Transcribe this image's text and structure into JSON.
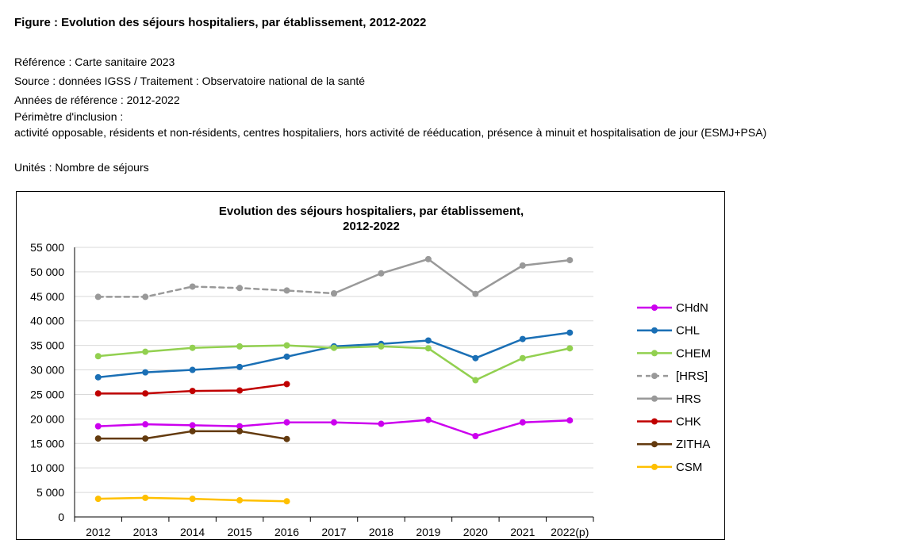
{
  "figure": {
    "title": "Figure : Evolution des séjours hospitaliers, par établissement, 2012-2022",
    "reference": "Référence : Carte sanitaire 2023",
    "source": "Source : données IGSS / Traitement : Observatoire national de la santé",
    "years": "Années de référence : 2012-2022",
    "scope_label": "Périmètre d'inclusion :",
    "scope": "activité opposable, résidents et non-résidents, centres hospitaliers, hors activité de rééducation, présence à minuit et hospitalisation de jour (ESMJ+PSA)",
    "units": "Unités : Nombre de séjours"
  },
  "chart_data": {
    "type": "line",
    "title_lines": [
      "Evolution des séjours hospitaliers, par établissement,",
      "2012-2022"
    ],
    "categories": [
      "2012",
      "2013",
      "2014",
      "2015",
      "2016",
      "2017",
      "2018",
      "2019",
      "2020",
      "2021",
      "2022(p)"
    ],
    "ylim": [
      0,
      55000
    ],
    "yticks": [
      0,
      5000,
      10000,
      15000,
      20000,
      25000,
      30000,
      35000,
      40000,
      45000,
      50000,
      55000
    ],
    "ytick_labels": [
      "0",
      "5 000",
      "10 000",
      "15 000",
      "20 000",
      "25 000",
      "30 000",
      "35 000",
      "40 000",
      "45 000",
      "50 000",
      "55 000"
    ],
    "grid": true,
    "legend_position": "right",
    "series": [
      {
        "name": "CHdN",
        "color": "#cc00ee",
        "dashed": false,
        "values": [
          18500,
          18900,
          18700,
          18500,
          19300,
          19300,
          19000,
          19800,
          16500,
          19300,
          19700
        ]
      },
      {
        "name": "CHL",
        "color": "#1a6fb5",
        "dashed": false,
        "values": [
          28500,
          29500,
          30000,
          30600,
          32700,
          34800,
          35300,
          36000,
          32400,
          36300,
          37600
        ]
      },
      {
        "name": "CHEM",
        "color": "#92d050",
        "dashed": false,
        "values": [
          32800,
          33700,
          34500,
          34800,
          35000,
          34500,
          34800,
          34400,
          27900,
          32400,
          34400
        ]
      },
      {
        "name": "[HRS]",
        "color": "#999999",
        "dashed": true,
        "values": [
          44900,
          44900,
          47000,
          46700,
          46200,
          45600,
          null,
          null,
          null,
          null,
          null
        ]
      },
      {
        "name": "HRS",
        "color": "#999999",
        "dashed": false,
        "values": [
          null,
          null,
          null,
          null,
          null,
          45600,
          49700,
          52600,
          45500,
          51300,
          52400
        ]
      },
      {
        "name": "CHK",
        "color": "#c00000",
        "dashed": false,
        "values": [
          25200,
          25200,
          25700,
          25800,
          27100,
          null,
          null,
          null,
          null,
          null,
          null
        ]
      },
      {
        "name": "ZITHA",
        "color": "#633a0e",
        "dashed": false,
        "values": [
          16000,
          16000,
          17500,
          17500,
          15900,
          null,
          null,
          null,
          null,
          null,
          null
        ]
      },
      {
        "name": "CSM",
        "color": "#ffc000",
        "dashed": false,
        "values": [
          3700,
          3900,
          3700,
          3400,
          3200,
          null,
          null,
          null,
          null,
          null,
          null
        ]
      }
    ]
  }
}
